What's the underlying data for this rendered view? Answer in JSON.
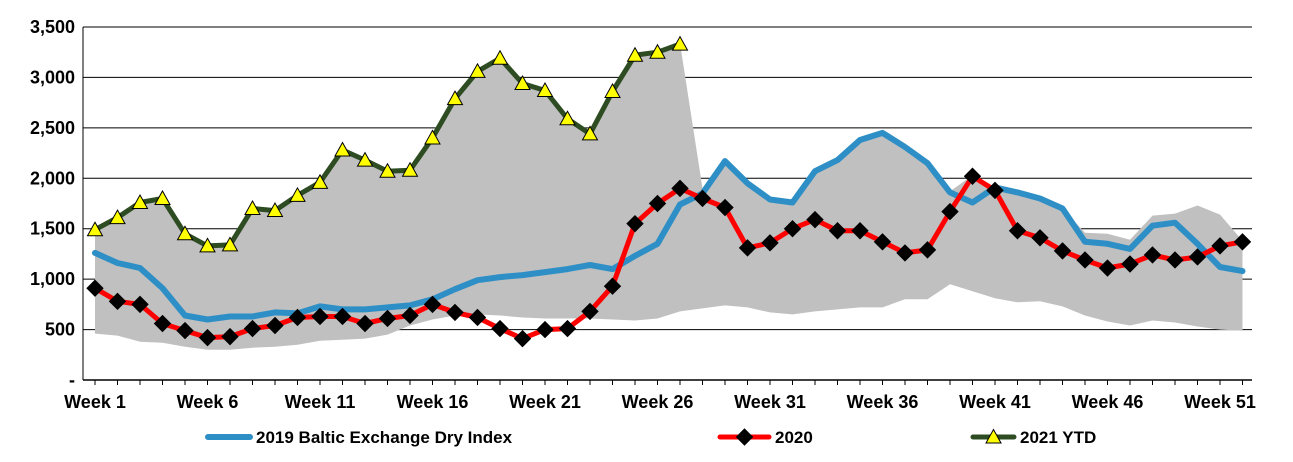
{
  "chart_data": {
    "type": "line",
    "title": "",
    "xlabel": "",
    "ylabel": "",
    "ylim": [
      0,
      3500
    ],
    "y_ticks": [
      0,
      500,
      1000,
      1500,
      2000,
      2500,
      3000,
      3500
    ],
    "y_tick_labels": [
      "-",
      "500",
      "1,000",
      "1,500",
      "2,000",
      "2,500",
      "3,000",
      "3,500"
    ],
    "x_tick_labels": [
      "Week 1",
      "Week 6",
      "Week 11",
      "Week 16",
      "Week 21",
      "Week 26",
      "Week 31",
      "Week 36",
      "Week 41",
      "Week 46",
      "Week 51"
    ],
    "x_tick_weeks": [
      1,
      6,
      11,
      16,
      21,
      26,
      31,
      36,
      41,
      46,
      51
    ],
    "weeks": [
      1,
      2,
      3,
      4,
      5,
      6,
      7,
      8,
      9,
      10,
      11,
      12,
      13,
      14,
      15,
      16,
      17,
      18,
      19,
      20,
      21,
      22,
      23,
      24,
      25,
      26,
      27,
      28,
      29,
      30,
      31,
      32,
      33,
      34,
      35,
      36,
      37,
      38,
      39,
      40,
      41,
      42,
      43,
      44,
      45,
      46,
      47,
      48,
      49,
      50,
      51,
      52
    ],
    "range_band": {
      "low": [
        460,
        440,
        380,
        370,
        330,
        300,
        300,
        320,
        330,
        350,
        390,
        400,
        410,
        450,
        540,
        600,
        640,
        650,
        640,
        620,
        610,
        610,
        610,
        600,
        590,
        610,
        680,
        710,
        740,
        720,
        670,
        650,
        680,
        700,
        720,
        720,
        800,
        800,
        950,
        880,
        810,
        770,
        780,
        730,
        640,
        580,
        540,
        590,
        570,
        530,
        500,
        490
      ],
      "high": [
        1500,
        1620,
        1780,
        1810,
        1470,
        1350,
        1350,
        1720,
        1680,
        1840,
        1980,
        2290,
        2190,
        2080,
        2090,
        2420,
        2820,
        3060,
        3200,
        2950,
        2900,
        2610,
        2470,
        2870,
        3230,
        3270,
        3340,
        1900,
        2170,
        1960,
        1810,
        1760,
        2090,
        2170,
        2390,
        2470,
        2330,
        2150,
        1870,
        2030,
        1900,
        1860,
        1820,
        1700,
        1460,
        1450,
        1390,
        1630,
        1650,
        1730,
        1640,
        1380
      ]
    },
    "series": [
      {
        "name": "2019 Baltic Exchange Dry Index",
        "color": "#2e8fc6",
        "marker": "none",
        "x": [
          1,
          2,
          3,
          4,
          5,
          6,
          7,
          8,
          9,
          10,
          11,
          12,
          13,
          14,
          15,
          16,
          17,
          18,
          19,
          20,
          21,
          22,
          23,
          24,
          25,
          26,
          27,
          28,
          29,
          30,
          31,
          32,
          33,
          34,
          35,
          36,
          37,
          38,
          39,
          40,
          41,
          42,
          43,
          44,
          45,
          46,
          47,
          48,
          49,
          50,
          51,
          52
        ],
        "values": [
          1260,
          1160,
          1110,
          910,
          640,
          600,
          630,
          630,
          670,
          660,
          730,
          700,
          700,
          720,
          740,
          800,
          900,
          990,
          1020,
          1040,
          1070,
          1100,
          1140,
          1100,
          1230,
          1350,
          1740,
          1850,
          2170,
          1950,
          1790,
          1760,
          2070,
          2180,
          2380,
          2450,
          2310,
          2150,
          1860,
          1760,
          1910,
          1860,
          1800,
          1700,
          1370,
          1350,
          1300,
          1530,
          1560,
          1350,
          1120,
          1080
        ]
      },
      {
        "name": "2020",
        "color": "#ff0000",
        "marker": "diamond",
        "x": [
          1,
          2,
          3,
          4,
          5,
          6,
          7,
          8,
          9,
          10,
          11,
          12,
          13,
          14,
          15,
          16,
          17,
          18,
          19,
          20,
          21,
          22,
          23,
          24,
          25,
          26,
          27,
          28,
          29,
          30,
          31,
          32,
          33,
          34,
          35,
          36,
          37,
          38,
          39,
          40,
          41,
          42,
          43,
          44,
          45,
          46,
          47,
          48,
          49,
          50,
          51,
          52
        ],
        "values": [
          910,
          780,
          750,
          560,
          490,
          420,
          430,
          510,
          540,
          620,
          630,
          630,
          560,
          610,
          640,
          750,
          670,
          620,
          510,
          410,
          500,
          510,
          680,
          930,
          1550,
          1750,
          1900,
          1800,
          1710,
          1310,
          1360,
          1500,
          1590,
          1480,
          1480,
          1370,
          1260,
          1290,
          1670,
          2020,
          1880,
          1480,
          1410,
          1280,
          1190,
          1110,
          1150,
          1240,
          1190,
          1220,
          1330,
          1370
        ]
      },
      {
        "name": "2021 YTD",
        "color": "#2d4c22",
        "marker": "triangle",
        "x": [
          1,
          2,
          3,
          4,
          5,
          6,
          7,
          8,
          9,
          10,
          11,
          12,
          13,
          14,
          15,
          16,
          17,
          18,
          19,
          20,
          21,
          22,
          23,
          24,
          25,
          26,
          27
        ],
        "values": [
          1490,
          1610,
          1760,
          1800,
          1450,
          1330,
          1340,
          1700,
          1680,
          1830,
          1960,
          2280,
          2180,
          2070,
          2080,
          2400,
          2790,
          3060,
          3190,
          2940,
          2870,
          2590,
          2440,
          2860,
          3220,
          3250,
          3330
        ]
      }
    ],
    "legend_position": "bottom",
    "grid": "horizontal"
  }
}
